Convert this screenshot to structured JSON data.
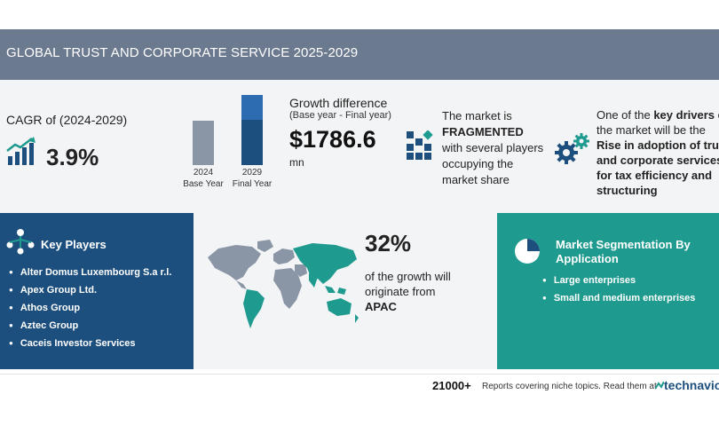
{
  "header": {
    "title": "GLOBAL TRUST AND CORPORATE SERVICE 2025-2029"
  },
  "cagr": {
    "label": "CAGR of (2024-2029)",
    "value": "3.9%",
    "icon": "chart-growth-icon"
  },
  "bars": {
    "base": {
      "year": "2024",
      "label": "Base Year"
    },
    "final": {
      "year": "2029",
      "label": "Final Year"
    }
  },
  "growth_difference": {
    "title": "Growth difference",
    "subtitle": "(Base year - Final year)",
    "value": "$1786.6",
    "unit": "mn"
  },
  "market": {
    "line1": "The market is",
    "emphasis": "FRAGMENTED",
    "line2": "with several players occupying the market share",
    "icon": "fragmented-blocks-icon"
  },
  "drivers": {
    "prefix": "One of the ",
    "emphasis1": "key drivers",
    "middle": " of the market will be the ",
    "emphasis2": "Rise in adoption of trust and corporate services for tax efficiency and structuring",
    "icon": "gears-icon"
  },
  "key_players": {
    "title": "Key Players",
    "icon": "network-people-icon",
    "items": [
      "Alter Domus Luxembourg S.a r.l.",
      "Apex Group Ltd.",
      "Athos Group",
      "Aztec Group",
      "Caceis Investor Services"
    ]
  },
  "regional": {
    "percent": "32%",
    "text": "of the growth will originate from",
    "region": "APAC",
    "icon": "world-map-icon"
  },
  "segmentation": {
    "title": "Market Segmentation By Application",
    "icon": "pie-chart-icon",
    "items": [
      "Large enterprises",
      "Small and medium enterprises"
    ]
  },
  "footer": {
    "count": "21000+",
    "text": "Reports covering niche topics. Read them at",
    "brand": "technavio"
  },
  "colors": {
    "banner": "#6b7a8f",
    "navy": "#1d4f7e",
    "teal": "#1e9a8f",
    "bar_base": "#8a96a6",
    "bar_top": "#2d6cb0",
    "bar_bottom": "#1d4f7e"
  }
}
